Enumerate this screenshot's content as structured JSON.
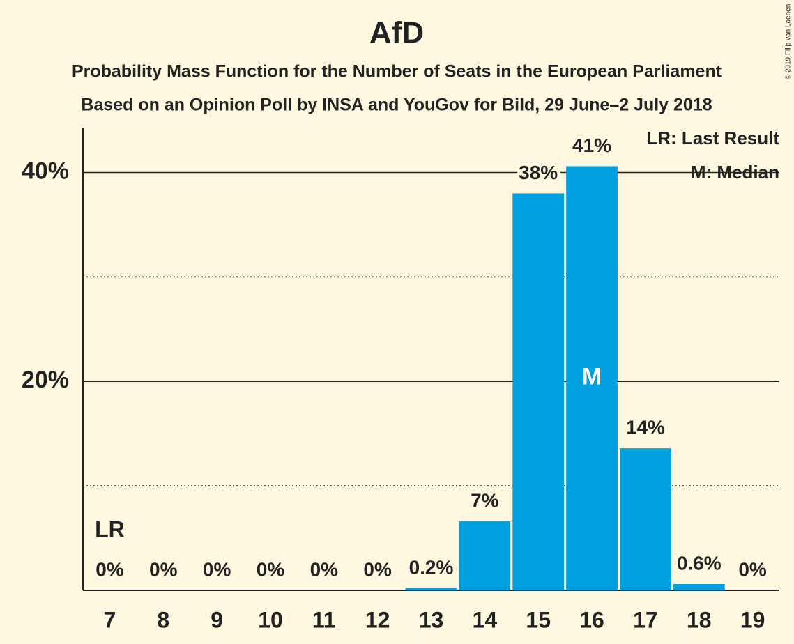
{
  "chart_data": {
    "type": "bar",
    "title": "AfD",
    "subtitle": "Probability Mass Function for the Number of Seats in the European Parliament",
    "subtitle2": "Based on an Opinion Poll by INSA and YouGov for Bild, 29 June–2 July 2018",
    "copyright": "© 2019 Filip van Laenen",
    "categories": [
      7,
      8,
      9,
      10,
      11,
      12,
      13,
      14,
      15,
      16,
      17,
      18,
      19
    ],
    "values": [
      0,
      0,
      0,
      0,
      0,
      0,
      0.2,
      6.6,
      38.0,
      40.6,
      13.6,
      0.6,
      0
    ],
    "value_labels": [
      "0%",
      "0%",
      "0%",
      "0%",
      "0%",
      "0%",
      "0.2%",
      "7%",
      "38%",
      "41%",
      "14%",
      "0.6%",
      "0%"
    ],
    "color": "#00a0e0",
    "ylim": [
      0,
      44.3
    ],
    "yticks": [
      {
        "value": 20,
        "label": "20%"
      },
      {
        "value": 40,
        "label": "40%"
      }
    ],
    "minor_yticks": [
      10,
      30
    ],
    "grid": true,
    "annotations": [
      {
        "text": "LR",
        "x": 7
      },
      {
        "text": "M",
        "x": 16
      }
    ],
    "legend": [
      "LR: Last Result",
      "M: Median"
    ],
    "legend_position": "upper right"
  }
}
